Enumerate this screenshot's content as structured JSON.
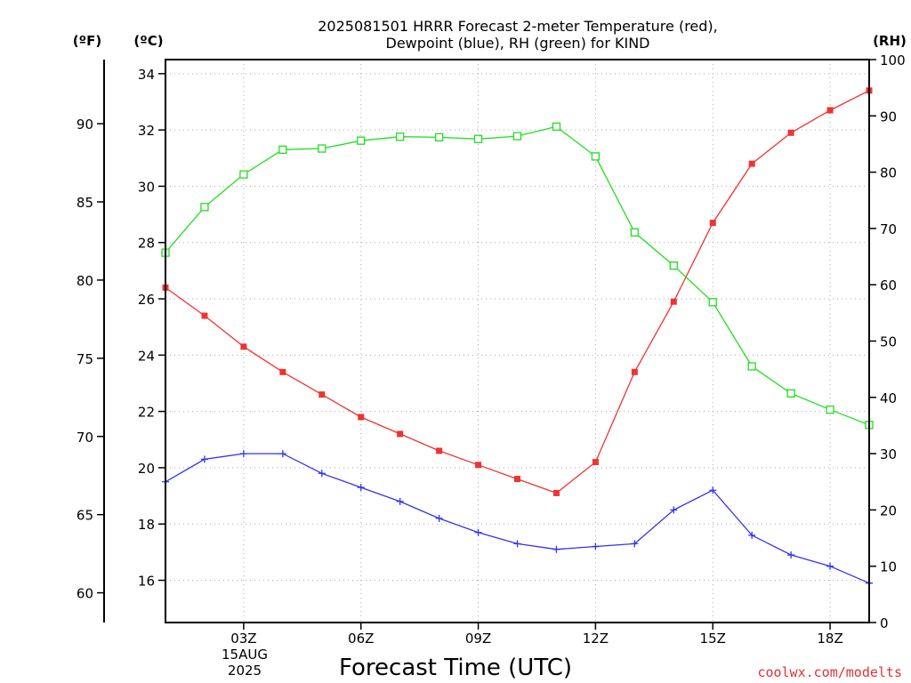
{
  "chart_data": {
    "type": "line",
    "title": "2025081501 HRRR Forecast 2-meter Temperature (red),",
    "subtitle": "Dewpoint (blue), RH (green) for KIND",
    "xlabel": "Forecast Time (UTC)",
    "credit": "coolwx.com/modelts",
    "x_unit_labels": [
      "(ºF)",
      "(ºC)",
      "(RH)"
    ],
    "x_hours": [
      1,
      2,
      3,
      4,
      5,
      6,
      7,
      8,
      9,
      10,
      11,
      12,
      13,
      14,
      15,
      16,
      17,
      18,
      19
    ],
    "xlim": [
      1,
      19
    ],
    "x_ticks": [
      {
        "hour": 3,
        "label": "03Z"
      },
      {
        "hour": 6,
        "label": "06Z"
      },
      {
        "hour": 9,
        "label": "09Z"
      },
      {
        "hour": 12,
        "label": "12Z"
      },
      {
        "hour": 15,
        "label": "15Z"
      },
      {
        "hour": 18,
        "label": "18Z"
      }
    ],
    "date_label": [
      "15AUG",
      "2025"
    ],
    "axes": {
      "celsius": {
        "ylim": [
          14.5,
          34.5
        ],
        "ticks": [
          16,
          18,
          20,
          22,
          24,
          26,
          28,
          30,
          32,
          34
        ]
      },
      "fahrenheit": {
        "ticks": [
          60,
          65,
          70,
          75,
          80,
          85,
          90
        ]
      },
      "rh": {
        "ylim": [
          0,
          100
        ],
        "ticks": [
          0,
          10,
          20,
          30,
          40,
          50,
          60,
          70,
          80,
          90,
          100
        ]
      }
    },
    "grid": true,
    "series": [
      {
        "axis": "celsius",
        "color": "#ee3333",
        "marker": "filled-square",
        "values": [
          26.4,
          25.4,
          24.3,
          23.4,
          22.6,
          21.8,
          21.2,
          20.6,
          20.1,
          19.6,
          19.1,
          20.2,
          23.4,
          25.9,
          28.7,
          30.8,
          31.9,
          32.7,
          33.4
        ]
      },
      {
        "axis": "celsius",
        "color": "#3333ee",
        "marker": "plus",
        "values": [
          19.5,
          20.3,
          20.5,
          20.5,
          19.8,
          19.3,
          18.8,
          18.2,
          17.7,
          17.3,
          17.1,
          17.2,
          17.3,
          18.5,
          19.2,
          17.6,
          16.9,
          16.5,
          15.9
        ]
      },
      {
        "axis": "rh",
        "color": "#22dd22",
        "marker": "open-square",
        "values": [
          65.7,
          73.8,
          79.6,
          84.0,
          84.2,
          85.6,
          86.3,
          86.2,
          85.9,
          86.4,
          88.1,
          82.8,
          69.3,
          63.4,
          56.9,
          45.5,
          40.7,
          37.8,
          35.1
        ]
      }
    ]
  }
}
